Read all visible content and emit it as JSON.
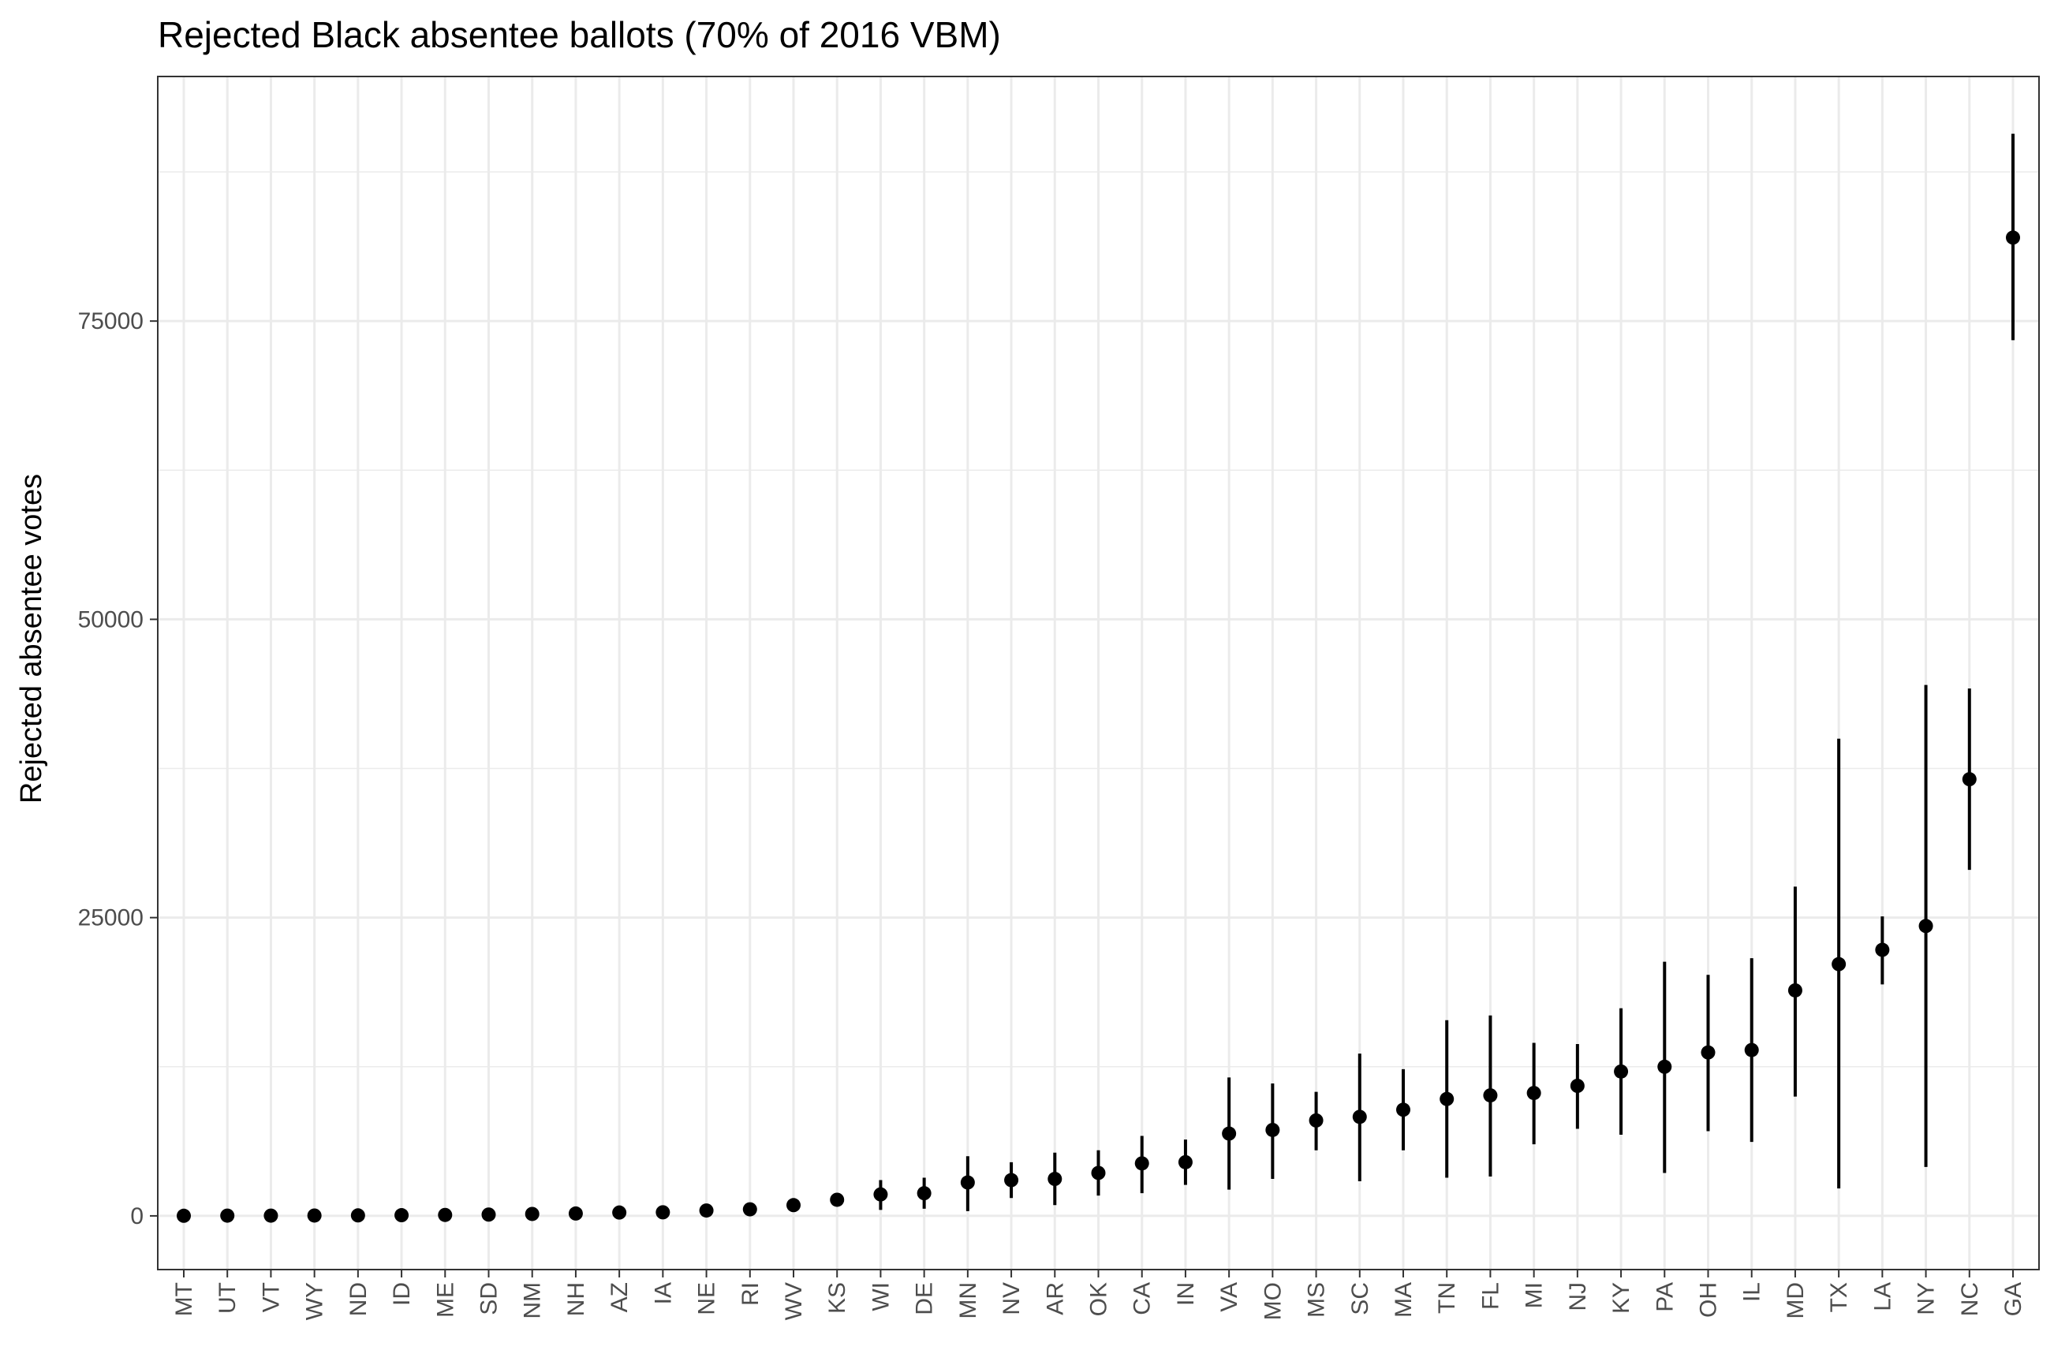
{
  "chart_data": {
    "type": "scatter",
    "title": "Rejected Black absentee ballots (70% of 2016 VBM)",
    "xlabel": "",
    "ylabel": "Rejected absentee votes",
    "ylim": [
      -4500,
      95500
    ],
    "y_ticks": [
      {
        "value": 0,
        "label": "0"
      },
      {
        "value": 25000,
        "label": "25000"
      },
      {
        "value": 50000,
        "label": "50000"
      },
      {
        "value": 75000,
        "label": "75000"
      }
    ],
    "y_minor_gridlines": [
      12500,
      37500,
      62500,
      87500
    ],
    "grid": true,
    "legend": "none",
    "colors": {
      "points": "#000000",
      "grid": "#ebebeb",
      "panel_border": "#333333",
      "tick_text": "#4d4d4d"
    },
    "categories": [
      "MT",
      "UT",
      "VT",
      "WY",
      "ND",
      "ID",
      "ME",
      "SD",
      "NM",
      "NH",
      "AZ",
      "IA",
      "NE",
      "RI",
      "WV",
      "KS",
      "WI",
      "DE",
      "MN",
      "NV",
      "AR",
      "OK",
      "CA",
      "IN",
      "VA",
      "MO",
      "MS",
      "SC",
      "MA",
      "TN",
      "FL",
      "MI",
      "NJ",
      "KY",
      "PA",
      "OH",
      "IL",
      "MD",
      "TX",
      "LA",
      "NY",
      "NC",
      "GA"
    ],
    "series": [
      {
        "points": [
          {
            "x": "MT",
            "y": 10,
            "ymin": 0,
            "ymax": 20
          },
          {
            "x": "UT",
            "y": 20,
            "ymin": 0,
            "ymax": 40
          },
          {
            "x": "VT",
            "y": 20,
            "ymin": 0,
            "ymax": 40
          },
          {
            "x": "WY",
            "y": 30,
            "ymin": 0,
            "ymax": 60
          },
          {
            "x": "ND",
            "y": 40,
            "ymin": 0,
            "ymax": 80
          },
          {
            "x": "ID",
            "y": 60,
            "ymin": 0,
            "ymax": 120
          },
          {
            "x": "ME",
            "y": 80,
            "ymin": 0,
            "ymax": 160
          },
          {
            "x": "SD",
            "y": 110,
            "ymin": 0,
            "ymax": 220
          },
          {
            "x": "NM",
            "y": 160,
            "ymin": 50,
            "ymax": 300
          },
          {
            "x": "NH",
            "y": 200,
            "ymin": 60,
            "ymax": 350
          },
          {
            "x": "AZ",
            "y": 280,
            "ymin": 80,
            "ymax": 500
          },
          {
            "x": "IA",
            "y": 300,
            "ymin": 100,
            "ymax": 550
          },
          {
            "x": "NE",
            "y": 450,
            "ymin": 150,
            "ymax": 800
          },
          {
            "x": "RI",
            "y": 550,
            "ymin": 200,
            "ymax": 950
          },
          {
            "x": "WV",
            "y": 900,
            "ymin": 450,
            "ymax": 1350
          },
          {
            "x": "KS",
            "y": 1350,
            "ymin": 800,
            "ymax": 1900
          },
          {
            "x": "WI",
            "y": 1800,
            "ymin": 500,
            "ymax": 3000
          },
          {
            "x": "DE",
            "y": 1900,
            "ymin": 600,
            "ymax": 3200
          },
          {
            "x": "MN",
            "y": 2800,
            "ymin": 400,
            "ymax": 5000
          },
          {
            "x": "NV",
            "y": 3000,
            "ymin": 1500,
            "ymax": 4500
          },
          {
            "x": "AR",
            "y": 3100,
            "ymin": 900,
            "ymax": 5300
          },
          {
            "x": "OK",
            "y": 3600,
            "ymin": 1700,
            "ymax": 5500
          },
          {
            "x": "CA",
            "y": 4400,
            "ymin": 1900,
            "ymax": 6700
          },
          {
            "x": "IN",
            "y": 4500,
            "ymin": 2600,
            "ymax": 6400
          },
          {
            "x": "VA",
            "y": 6900,
            "ymin": 2200,
            "ymax": 11600
          },
          {
            "x": "MO",
            "y": 7200,
            "ymin": 3100,
            "ymax": 11100
          },
          {
            "x": "MS",
            "y": 8000,
            "ymin": 5500,
            "ymax": 10400
          },
          {
            "x": "SC",
            "y": 8300,
            "ymin": 2900,
            "ymax": 13600
          },
          {
            "x": "MA",
            "y": 8900,
            "ymin": 5500,
            "ymax": 12300
          },
          {
            "x": "TN",
            "y": 9800,
            "ymin": 3200,
            "ymax": 16400
          },
          {
            "x": "FL",
            "y": 10100,
            "ymin": 3300,
            "ymax": 16800
          },
          {
            "x": "MI",
            "y": 10300,
            "ymin": 6000,
            "ymax": 14500
          },
          {
            "x": "NJ",
            "y": 10900,
            "ymin": 7300,
            "ymax": 14400
          },
          {
            "x": "KY",
            "y": 12100,
            "ymin": 6800,
            "ymax": 17400
          },
          {
            "x": "PA",
            "y": 12500,
            "ymin": 3600,
            "ymax": 21300
          },
          {
            "x": "OH",
            "y": 13700,
            "ymin": 7100,
            "ymax": 20200
          },
          {
            "x": "IL",
            "y": 13900,
            "ymin": 6200,
            "ymax": 21600
          },
          {
            "x": "MD",
            "y": 18900,
            "ymin": 10000,
            "ymax": 27600
          },
          {
            "x": "TX",
            "y": 21100,
            "ymin": 2300,
            "ymax": 40000
          },
          {
            "x": "LA",
            "y": 22300,
            "ymin": 19400,
            "ymax": 25100
          },
          {
            "x": "NY",
            "y": 24300,
            "ymin": 4100,
            "ymax": 44500
          },
          {
            "x": "NC",
            "y": 36600,
            "ymin": 29000,
            "ymax": 44200
          },
          {
            "x": "GA",
            "y": 82000,
            "ymin": 73400,
            "ymax": 90700
          }
        ]
      }
    ]
  }
}
